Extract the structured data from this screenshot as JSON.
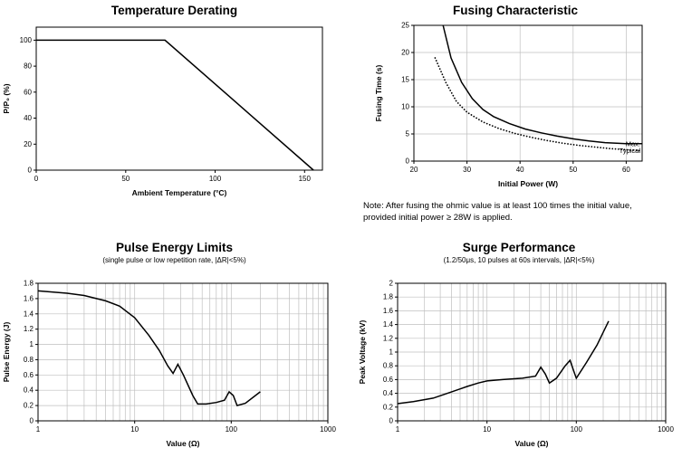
{
  "page": {
    "background": "#ffffff",
    "line_color": "#000000",
    "grid_color": "#bfbfbf"
  },
  "chart_data": [
    {
      "id": "temperature-derating",
      "type": "line",
      "title": "Temperature Derating",
      "xlabel": "Ambient Temperature (°C)",
      "ylabel": "P/P₀ (%)",
      "xscale": "linear",
      "xlim": [
        0,
        160
      ],
      "ylim": [
        0,
        110
      ],
      "xticks": [
        0,
        50,
        100,
        150
      ],
      "yticks": [
        0,
        20,
        40,
        60,
        80,
        100
      ],
      "grid": "none",
      "series": [
        {
          "name": "derating",
          "style": "solid",
          "points": [
            [
              0,
              100
            ],
            [
              72,
              100
            ],
            [
              155,
              0
            ]
          ]
        }
      ]
    },
    {
      "id": "fusing-characteristic",
      "type": "line",
      "title": "Fusing Characteristic",
      "xlabel": "Initial Power (W)",
      "ylabel": "Fusing Time (s)",
      "xscale": "linear",
      "xlim": [
        20,
        63
      ],
      "ylim": [
        0,
        25
      ],
      "xticks": [
        20,
        30,
        40,
        50,
        60
      ],
      "yticks": [
        0,
        5,
        10,
        15,
        20,
        25
      ],
      "grid": "ticks",
      "series": [
        {
          "name": "Max.",
          "style": "solid",
          "end_label": "Max.",
          "points": [
            [
              25.5,
              25
            ],
            [
              27,
              19
            ],
            [
              29,
              14.5
            ],
            [
              31,
              11.5
            ],
            [
              33,
              9.5
            ],
            [
              35,
              8.2
            ],
            [
              38,
              6.9
            ],
            [
              41,
              5.9
            ],
            [
              44,
              5.2
            ],
            [
              47,
              4.6
            ],
            [
              50,
              4.1
            ],
            [
              53,
              3.7
            ],
            [
              56,
              3.4
            ],
            [
              60,
              3.2
            ],
            [
              63,
              3.2
            ]
          ]
        },
        {
          "name": "Typical",
          "style": "dotted",
          "end_label": "Typical",
          "points": [
            [
              24,
              19
            ],
            [
              26,
              14.5
            ],
            [
              28,
              11
            ],
            [
              30,
              9
            ],
            [
              33,
              7.2
            ],
            [
              36,
              6
            ],
            [
              39,
              5.1
            ],
            [
              42,
              4.4
            ],
            [
              45,
              3.8
            ],
            [
              48,
              3.3
            ],
            [
              51,
              2.9
            ],
            [
              54,
              2.6
            ],
            [
              57,
              2.3
            ],
            [
              60,
              2.1
            ],
            [
              63,
              1.9
            ]
          ]
        }
      ],
      "note": "Note: After fusing the ohmic value is at least 100 times the initial value, provided initial power ≥ 28W is applied."
    },
    {
      "id": "pulse-energy-limits",
      "type": "line",
      "title": "Pulse Energy Limits",
      "subtitle": "(single pulse or low repetition rate, |ΔR|<5%)",
      "xlabel": "Value (Ω)",
      "ylabel": "Pulse Energy (J)",
      "xscale": "log",
      "xlim": [
        1,
        1000
      ],
      "ylim": [
        0,
        1.8
      ],
      "xticks": [
        1,
        10,
        100,
        1000
      ],
      "yticks": [
        0,
        0.2,
        0.4,
        0.6,
        0.8,
        1,
        1.2,
        1.4,
        1.6,
        1.8
      ],
      "grid": "log",
      "series": [
        {
          "name": "pulse-energy",
          "style": "solid",
          "points": [
            [
              1,
              1.7
            ],
            [
              2,
              1.67
            ],
            [
              3,
              1.64
            ],
            [
              5,
              1.57
            ],
            [
              7,
              1.5
            ],
            [
              10,
              1.35
            ],
            [
              14,
              1.12
            ],
            [
              18,
              0.92
            ],
            [
              22,
              0.72
            ],
            [
              25,
              0.62
            ],
            [
              28,
              0.74
            ],
            [
              32,
              0.6
            ],
            [
              40,
              0.33
            ],
            [
              45,
              0.22
            ],
            [
              55,
              0.22
            ],
            [
              70,
              0.24
            ],
            [
              85,
              0.27
            ],
            [
              95,
              0.38
            ],
            [
              105,
              0.33
            ],
            [
              115,
              0.2
            ],
            [
              140,
              0.23
            ],
            [
              200,
              0.38
            ]
          ]
        }
      ]
    },
    {
      "id": "surge-performance",
      "type": "line",
      "title": "Surge Performance",
      "subtitle": "(1.2/50μs, 10 pulses at 60s intervals, |ΔR|<5%)",
      "xlabel": "Value (Ω)",
      "ylabel": "Peak Voltage (kV)",
      "xscale": "log",
      "xlim": [
        1,
        1000
      ],
      "ylim": [
        0,
        2
      ],
      "xticks": [
        1,
        10,
        100,
        1000
      ],
      "yticks": [
        0,
        0.2,
        0.4,
        0.6,
        0.8,
        1,
        1.2,
        1.4,
        1.6,
        1.8,
        2
      ],
      "grid": "log",
      "series": [
        {
          "name": "peak-voltage",
          "style": "solid",
          "points": [
            [
              1,
              0.25
            ],
            [
              1.5,
              0.28
            ],
            [
              2.5,
              0.33
            ],
            [
              4,
              0.42
            ],
            [
              6,
              0.5
            ],
            [
              8,
              0.55
            ],
            [
              10,
              0.58
            ],
            [
              15,
              0.6
            ],
            [
              25,
              0.62
            ],
            [
              35,
              0.65
            ],
            [
              40,
              0.78
            ],
            [
              45,
              0.68
            ],
            [
              50,
              0.55
            ],
            [
              60,
              0.62
            ],
            [
              75,
              0.8
            ],
            [
              85,
              0.88
            ],
            [
              95,
              0.7
            ],
            [
              100,
              0.62
            ],
            [
              130,
              0.85
            ],
            [
              170,
              1.1
            ],
            [
              230,
              1.45
            ]
          ]
        }
      ]
    }
  ]
}
